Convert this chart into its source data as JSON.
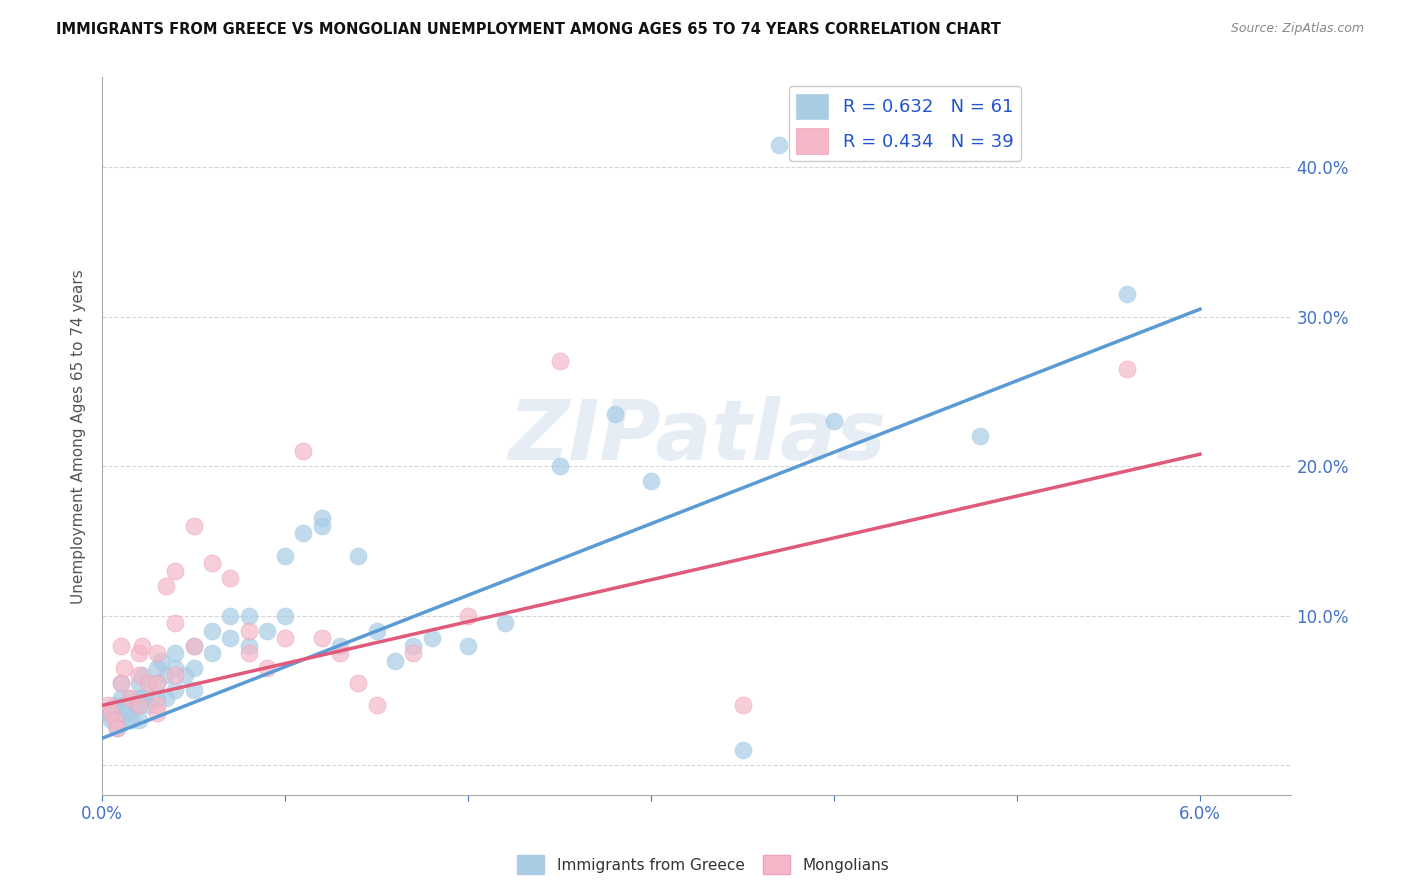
{
  "title": "IMMIGRANTS FROM GREECE VS MONGOLIAN UNEMPLOYMENT AMONG AGES 65 TO 74 YEARS CORRELATION CHART",
  "source": "Source: ZipAtlas.com",
  "ylabel": "Unemployment Among Ages 65 to 74 years",
  "xlim": [
    0.0,
    0.065
  ],
  "ylim": [
    -0.02,
    0.46
  ],
  "legend_blue_r": "R = 0.632",
  "legend_blue_n": "N = 61",
  "legend_pink_r": "R = 0.434",
  "legend_pink_n": "N = 39",
  "blue_color": "#a8cce4",
  "pink_color": "#f4b8c8",
  "blue_line_color": "#5b9bd5",
  "pink_line_color": "#e05a7a",
  "watermark": "ZIPatlas",
  "blue_points_x": [
    0.0003,
    0.0005,
    0.0007,
    0.0008,
    0.001,
    0.001,
    0.001,
    0.0012,
    0.0013,
    0.0015,
    0.0016,
    0.0018,
    0.002,
    0.002,
    0.002,
    0.002,
    0.0022,
    0.0023,
    0.0025,
    0.0025,
    0.003,
    0.003,
    0.003,
    0.0032,
    0.0035,
    0.0035,
    0.004,
    0.004,
    0.004,
    0.0045,
    0.005,
    0.005,
    0.005,
    0.006,
    0.006,
    0.007,
    0.007,
    0.008,
    0.008,
    0.009,
    0.01,
    0.01,
    0.011,
    0.012,
    0.012,
    0.013,
    0.014,
    0.015,
    0.016,
    0.017,
    0.018,
    0.02,
    0.022,
    0.025,
    0.028,
    0.03,
    0.035,
    0.04,
    0.048,
    0.056,
    0.037
  ],
  "blue_points_y": [
    0.035,
    0.03,
    0.04,
    0.025,
    0.055,
    0.045,
    0.03,
    0.04,
    0.035,
    0.045,
    0.03,
    0.04,
    0.055,
    0.045,
    0.04,
    0.03,
    0.06,
    0.045,
    0.055,
    0.04,
    0.065,
    0.055,
    0.045,
    0.07,
    0.06,
    0.045,
    0.075,
    0.065,
    0.05,
    0.06,
    0.08,
    0.065,
    0.05,
    0.09,
    0.075,
    0.1,
    0.085,
    0.1,
    0.08,
    0.09,
    0.14,
    0.1,
    0.155,
    0.165,
    0.16,
    0.08,
    0.14,
    0.09,
    0.07,
    0.08,
    0.085,
    0.08,
    0.095,
    0.2,
    0.235,
    0.19,
    0.01,
    0.23,
    0.22,
    0.315,
    0.415
  ],
  "pink_points_x": [
    0.0003,
    0.0005,
    0.0007,
    0.0008,
    0.001,
    0.001,
    0.0012,
    0.0015,
    0.002,
    0.002,
    0.002,
    0.0022,
    0.0025,
    0.003,
    0.003,
    0.003,
    0.0035,
    0.004,
    0.004,
    0.005,
    0.005,
    0.006,
    0.007,
    0.008,
    0.008,
    0.009,
    0.01,
    0.011,
    0.012,
    0.013,
    0.014,
    0.015,
    0.017,
    0.02,
    0.025,
    0.035,
    0.056,
    0.003,
    0.004
  ],
  "pink_points_y": [
    0.04,
    0.035,
    0.03,
    0.025,
    0.08,
    0.055,
    0.065,
    0.045,
    0.075,
    0.06,
    0.04,
    0.08,
    0.055,
    0.075,
    0.055,
    0.04,
    0.12,
    0.13,
    0.095,
    0.16,
    0.08,
    0.135,
    0.125,
    0.09,
    0.075,
    0.065,
    0.085,
    0.21,
    0.085,
    0.075,
    0.055,
    0.04,
    0.075,
    0.1,
    0.27,
    0.04,
    0.265,
    0.035,
    0.06
  ],
  "blue_trendline_x": [
    0.0,
    0.06
  ],
  "blue_trendline_y": [
    0.018,
    0.305
  ],
  "pink_trendline_x": [
    0.0,
    0.06
  ],
  "pink_trendline_y": [
    0.04,
    0.208
  ],
  "yticks": [
    0.0,
    0.1,
    0.2,
    0.3,
    0.4
  ],
  "ytick_labels": [
    "",
    "10.0%",
    "20.0%",
    "30.0%",
    "40.0%"
  ],
  "xticks": [
    0.0,
    0.01,
    0.02,
    0.03,
    0.04,
    0.05,
    0.06
  ],
  "xtick_labels": [
    "0.0%",
    "",
    "",
    "",
    "",
    "",
    "6.0%"
  ]
}
